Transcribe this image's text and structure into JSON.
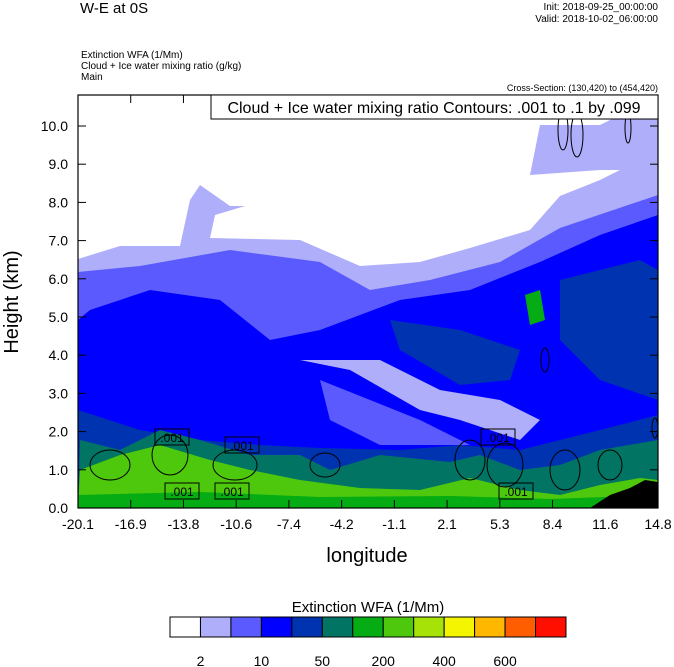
{
  "header": {
    "title": "W-E at 0S",
    "init": "Init: 2018-09-25_00:00:00",
    "valid": "Valid: 2018-10-02_06:00:00",
    "subtitles": [
      "Extinction WFA   (1/Mm)",
      "Cloud + Ice water mixing ratio   (g/kg)",
      "Main"
    ],
    "cross_section": "Cross-Section: (130,420) to (454,420)"
  },
  "chart_data": {
    "type": "heatmap",
    "title": "W-E at 0S",
    "xlabel": "longitude",
    "ylabel": "Height (km)",
    "xlim": [
      -20.1,
      14.8
    ],
    "ylim": [
      0,
      10.8
    ],
    "x_ticks": [
      "-20.1",
      "-16.9",
      "-13.8",
      "-10.6",
      "-7.4",
      "-4.2",
      "-1.1",
      "2.1",
      "5.3",
      "8.4",
      "11.6",
      "14.8"
    ],
    "y_ticks": [
      "0.0",
      "1.0",
      "2.0",
      "3.0",
      "4.0",
      "5.0",
      "6.0",
      "7.0",
      "8.0",
      "9.0",
      "10.0"
    ],
    "contour_info": "Cloud + Ice water mixing ratio Contours: .001 to .1 by .099",
    "contour_labels": [
      ".001",
      ".001",
      ".001",
      ".001",
      ".001",
      ".001"
    ],
    "colorbar": {
      "title": "Extinction WFA  (1/Mm)",
      "colors": [
        "#ffffff",
        "#aeaefa",
        "#5a5aff",
        "#0000ff",
        "#0033b0",
        "#027464",
        "#05ac14",
        "#4ec80c",
        "#a6e208",
        "#f4f500",
        "#ffb700",
        "#ff5e00",
        "#ff0f00"
      ],
      "tick_labels": [
        "2",
        "10",
        "50",
        "200",
        "400",
        "600"
      ]
    }
  }
}
